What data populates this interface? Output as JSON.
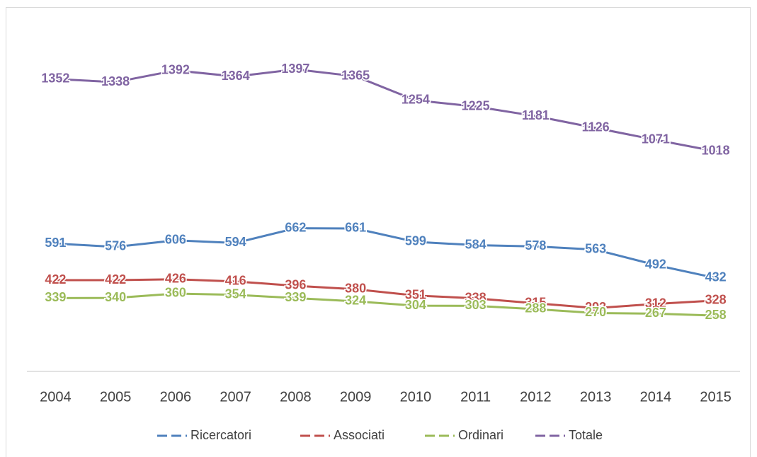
{
  "chart_data": {
    "type": "line",
    "categories": [
      "2004",
      "2005",
      "2006",
      "2007",
      "2008",
      "2009",
      "2010",
      "2011",
      "2012",
      "2013",
      "2014",
      "2015"
    ],
    "series": [
      {
        "name": "Ricercatori",
        "color": "#4f81bd",
        "values": [
          591,
          576,
          606,
          594,
          662,
          661,
          599,
          584,
          578,
          563,
          492,
          432
        ]
      },
      {
        "name": "Associati",
        "color": "#c0504d",
        "values": [
          422,
          422,
          426,
          416,
          396,
          380,
          351,
          338,
          315,
          293,
          312,
          328
        ]
      },
      {
        "name": "Ordinari",
        "color": "#9bbb59",
        "values": [
          339,
          340,
          360,
          354,
          339,
          324,
          304,
          303,
          288,
          270,
          267,
          258
        ]
      },
      {
        "name": "Totale",
        "color": "#8064a2",
        "values": [
          1352,
          1338,
          1392,
          1364,
          1397,
          1365,
          1254,
          1225,
          1181,
          1126,
          1071,
          1018
        ]
      }
    ],
    "ylim": [
      0,
      1600
    ],
    "legend": "bottom"
  }
}
